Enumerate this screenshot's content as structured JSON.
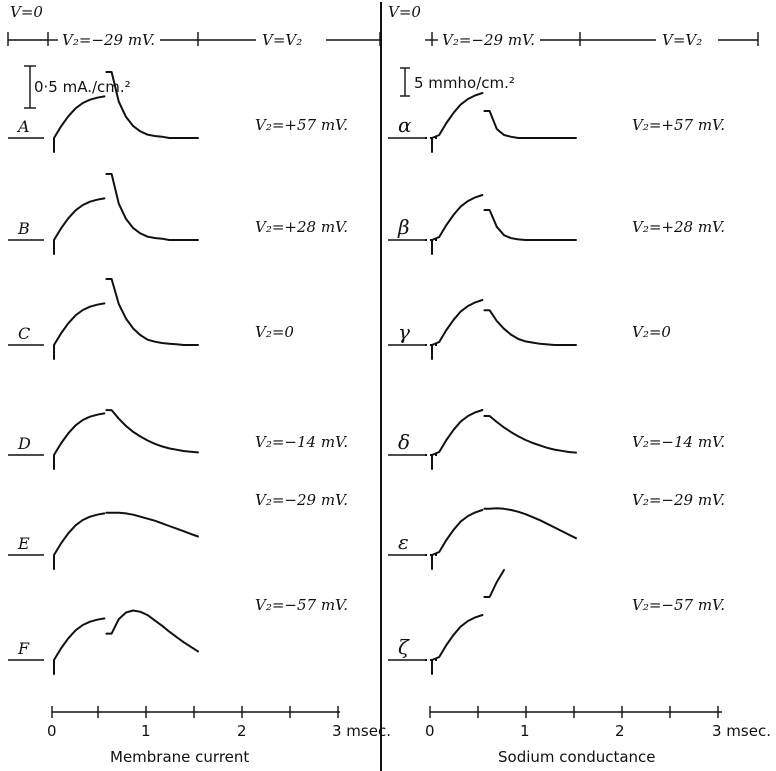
{
  "chart_data": [
    {
      "type": "line",
      "title": "",
      "xlabel": "Membrane current",
      "ylabel": "",
      "x_ticks": [
        "0",
        "1",
        "2",
        "3 msec."
      ],
      "xlim": [
        0,
        3
      ],
      "scale_bar": "0·5 mA./cm.²",
      "phase_labels": {
        "start": "V=0",
        "middle": "V₂=−29 mV.",
        "end": "V=V₂"
      },
      "series": [
        {
          "name": "A",
          "V2_label": "V₂=+57 mV.",
          "y": [
            0.0,
            0.18,
            0.33,
            0.45,
            0.53,
            0.58,
            0.61,
            0.63,
            1.0,
            0.55,
            0.32,
            0.18,
            0.1,
            0.05,
            0.03,
            0.02,
            0.0,
            0.0,
            0.0,
            0.0,
            0.0
          ]
        },
        {
          "name": "B",
          "V2_label": "V₂=+28 mV.",
          "y": [
            0.0,
            0.18,
            0.33,
            0.45,
            0.53,
            0.58,
            0.61,
            0.63,
            1.0,
            0.55,
            0.32,
            0.18,
            0.1,
            0.05,
            0.03,
            0.02,
            0.0,
            0.0,
            0.0,
            0.0,
            0.0
          ]
        },
        {
          "name": "C",
          "V2_label": "V₂=0",
          "y": [
            0.0,
            0.18,
            0.33,
            0.45,
            0.53,
            0.58,
            0.61,
            0.63,
            1.0,
            0.62,
            0.4,
            0.25,
            0.15,
            0.08,
            0.05,
            0.03,
            0.02,
            0.01,
            0.0,
            0.0,
            0.0
          ]
        },
        {
          "name": "D",
          "V2_label": "V₂=−14 mV.",
          "y": [
            0.0,
            0.18,
            0.33,
            0.45,
            0.53,
            0.58,
            0.61,
            0.63,
            0.68,
            0.55,
            0.44,
            0.35,
            0.28,
            0.22,
            0.17,
            0.13,
            0.1,
            0.08,
            0.06,
            0.05,
            0.04
          ]
        },
        {
          "name": "E",
          "V2_label": "V₂=−29 mV.",
          "y": [
            0.0,
            0.18,
            0.33,
            0.45,
            0.53,
            0.58,
            0.61,
            0.63,
            0.64,
            0.64,
            0.63,
            0.61,
            0.58,
            0.55,
            0.52,
            0.48,
            0.44,
            0.4,
            0.36,
            0.32,
            0.28
          ]
        },
        {
          "name": "F",
          "V2_label": "V₂=−57 mV.",
          "y": [
            0.0,
            0.18,
            0.33,
            0.45,
            0.53,
            0.58,
            0.61,
            0.63,
            0.4,
            0.62,
            0.72,
            0.75,
            0.73,
            0.68,
            0.6,
            0.52,
            0.43,
            0.35,
            0.27,
            0.2,
            0.13
          ]
        }
      ]
    },
    {
      "type": "line",
      "title": "",
      "xlabel": "Sodium conductance",
      "ylabel": "",
      "x_ticks": [
        "0",
        "1",
        "2",
        "3 msec."
      ],
      "xlim": [
        0,
        3
      ],
      "scale_bar": "5 mmho/cm.²",
      "phase_labels": {
        "start": "V=0",
        "middle": "V₂=−29 mV.",
        "end": "V=V₂"
      },
      "series": [
        {
          "name": "α",
          "V2_label": "V₂=+57 mV.",
          "y": [
            0.0,
            0.05,
            0.25,
            0.42,
            0.56,
            0.65,
            0.71,
            0.75,
            0.45,
            0.15,
            0.05,
            0.02,
            0.0,
            0.0,
            0.0,
            0.0,
            0.0,
            0.0,
            0.0,
            0.0,
            0.0
          ]
        },
        {
          "name": "β",
          "V2_label": "V₂=+28 mV.",
          "y": [
            0.0,
            0.05,
            0.25,
            0.42,
            0.56,
            0.65,
            0.71,
            0.75,
            0.5,
            0.22,
            0.08,
            0.03,
            0.01,
            0.0,
            0.0,
            0.0,
            0.0,
            0.0,
            0.0,
            0.0,
            0.0
          ]
        },
        {
          "name": "γ",
          "V2_label": "V₂=0",
          "y": [
            0.0,
            0.05,
            0.25,
            0.42,
            0.56,
            0.65,
            0.71,
            0.75,
            0.58,
            0.4,
            0.27,
            0.17,
            0.1,
            0.06,
            0.04,
            0.02,
            0.01,
            0.0,
            0.0,
            0.0,
            0.0
          ]
        },
        {
          "name": "δ",
          "V2_label": "V₂=−14 mV.",
          "y": [
            0.0,
            0.05,
            0.25,
            0.42,
            0.56,
            0.65,
            0.71,
            0.75,
            0.65,
            0.55,
            0.46,
            0.38,
            0.31,
            0.25,
            0.2,
            0.16,
            0.12,
            0.09,
            0.07,
            0.05,
            0.04
          ]
        },
        {
          "name": "ε",
          "V2_label": "V₂=−29 mV.",
          "y": [
            0.0,
            0.05,
            0.25,
            0.42,
            0.56,
            0.65,
            0.71,
            0.75,
            0.77,
            0.78,
            0.77,
            0.75,
            0.72,
            0.68,
            0.63,
            0.58,
            0.52,
            0.46,
            0.4,
            0.34,
            0.28
          ]
        },
        {
          "name": "ζ",
          "V2_label": "V₂=−57 mV.",
          "y": [
            0.0,
            0.05,
            0.25,
            0.42,
            0.56,
            0.65,
            0.71,
            0.75,
            1.05,
            1.3,
            1.5
          ]
        }
      ]
    }
  ]
}
